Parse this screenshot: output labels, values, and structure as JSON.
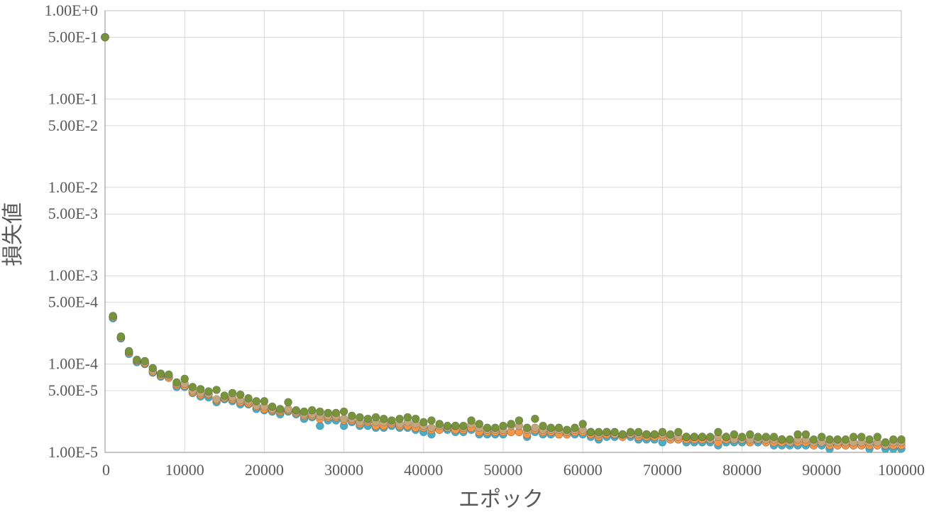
{
  "chart_data": {
    "type": "scatter",
    "xlabel": "エポック",
    "ylabel": "損失値",
    "xlim": [
      0,
      100000
    ],
    "ylim": [
      1e-05,
      1
    ],
    "y_scale": "log",
    "grid": true,
    "legend": "none",
    "x_ticks": [
      0,
      10000,
      20000,
      30000,
      40000,
      50000,
      60000,
      70000,
      80000,
      90000,
      100000
    ],
    "x_tick_labels": [
      "0",
      "10000",
      "20000",
      "30000",
      "40000",
      "50000",
      "60000",
      "70000",
      "80000",
      "90000",
      "100000"
    ],
    "y_ticks": [
      1,
      0.5,
      0.1,
      0.05,
      0.01,
      0.005,
      0.001,
      0.0005,
      0.0001,
      5e-05,
      1e-05
    ],
    "y_tick_labels": [
      "1.00E+0",
      "5.00E-1",
      "1.00E-1",
      "5.00E-2",
      "1.00E-2",
      "5.00E-3",
      "1.00E-3",
      "5.00E-4",
      "1.00E-4",
      "5.00E-5",
      "1.00E-5"
    ],
    "x": [
      0,
      1000,
      2000,
      3000,
      4000,
      5000,
      6000,
      7000,
      8000,
      9000,
      10000,
      11000,
      12000,
      13000,
      14000,
      15000,
      16000,
      17000,
      18000,
      19000,
      20000,
      21000,
      22000,
      23000,
      24000,
      25000,
      26000,
      27000,
      28000,
      29000,
      30000,
      31000,
      32000,
      33000,
      34000,
      35000,
      36000,
      37000,
      38000,
      39000,
      40000,
      41000,
      42000,
      43000,
      44000,
      45000,
      46000,
      47000,
      48000,
      49000,
      50000,
      51000,
      52000,
      53000,
      54000,
      55000,
      56000,
      57000,
      58000,
      59000,
      60000,
      61000,
      62000,
      63000,
      64000,
      65000,
      66000,
      67000,
      68000,
      69000,
      70000,
      71000,
      72000,
      73000,
      74000,
      75000,
      76000,
      77000,
      78000,
      79000,
      80000,
      81000,
      82000,
      83000,
      84000,
      85000,
      86000,
      87000,
      88000,
      89000,
      90000,
      91000,
      92000,
      93000,
      94000,
      95000,
      96000,
      97000,
      98000,
      99000,
      100000
    ],
    "series": [
      {
        "color": "#4bacc6",
        "values": [
          0.5,
          0.00033,
          0.000195,
          0.00013,
          0.000105,
          0.0001,
          8e-05,
          7.2e-05,
          7e-05,
          5.5e-05,
          5.5e-05,
          4.7e-05,
          4.3e-05,
          4.2e-05,
          3.7e-05,
          4e-05,
          3.8e-05,
          3.5e-05,
          3.5e-05,
          3.1e-05,
          3e-05,
          2.9e-05,
          2.7e-05,
          2.9e-05,
          2.7e-05,
          2.4e-05,
          2.5e-05,
          2e-05,
          2.3e-05,
          2.3e-05,
          2e-05,
          2.2e-05,
          2e-05,
          2e-05,
          1.9e-05,
          1.9e-05,
          2e-05,
          1.9e-05,
          1.9e-05,
          1.8e-05,
          1.7e-05,
          1.6e-05,
          1.8e-05,
          1.8e-05,
          1.7e-05,
          1.7e-05,
          1.8e-05,
          1.6e-05,
          1.6e-05,
          1.6e-05,
          1.6e-05,
          1.7e-05,
          1.7e-05,
          1.5e-05,
          1.7e-05,
          1.6e-05,
          1.6e-05,
          1.6e-05,
          1.6e-05,
          1.6e-05,
          1.6e-05,
          1.5e-05,
          1.4e-05,
          1.5e-05,
          1.5e-05,
          1.5e-05,
          1.5e-05,
          1.4e-05,
          1.4e-05,
          1.4e-05,
          1.3e-05,
          1.4e-05,
          1.4e-05,
          1.3e-05,
          1.3e-05,
          1.3e-05,
          1.3e-05,
          1.2e-05,
          1.3e-05,
          1.3e-05,
          1.3e-05,
          1.3e-05,
          1.3e-05,
          1.3e-05,
          1.2e-05,
          1.2e-05,
          1.2e-05,
          1.2e-05,
          1.2e-05,
          1.2e-05,
          1.2e-05,
          1.1e-05,
          1.2e-05,
          1.2e-05,
          1.2e-05,
          1.2e-05,
          1.1e-05,
          1.2e-05,
          1.1e-05,
          1.1e-05,
          1.1e-05
        ]
      },
      {
        "color": "#f79646",
        "values": [
          0.5,
          0.00034,
          0.0002,
          0.000135,
          0.000108,
          0.000102,
          8.2e-05,
          7.4e-05,
          7e-05,
          5.8e-05,
          5.7e-05,
          4.8e-05,
          4.5e-05,
          4.5e-05,
          3.9e-05,
          4.1e-05,
          4e-05,
          3.7e-05,
          3.6e-05,
          3.3e-05,
          3.1e-05,
          3e-05,
          2.9e-05,
          3e-05,
          2.8e-05,
          2.6e-05,
          2.6e-05,
          2.4e-05,
          2.5e-05,
          2.5e-05,
          2.3e-05,
          2.3e-05,
          2.1e-05,
          2.2e-05,
          2e-05,
          2e-05,
          2.1e-05,
          2e-05,
          2e-05,
          1.9e-05,
          1.9e-05,
          1.8e-05,
          1.8e-05,
          1.9e-05,
          1.8e-05,
          1.8e-05,
          1.9e-05,
          1.7e-05,
          1.7e-05,
          1.7e-05,
          1.7e-05,
          1.7e-05,
          1.7e-05,
          1.6e-05,
          1.8e-05,
          1.7e-05,
          1.7e-05,
          1.6e-05,
          1.6e-05,
          1.7e-05,
          1.7e-05,
          1.6e-05,
          1.5e-05,
          1.6e-05,
          1.6e-05,
          1.5e-05,
          1.6e-05,
          1.5e-05,
          1.5e-05,
          1.5e-05,
          1.5e-05,
          1.4e-05,
          1.4e-05,
          1.4e-05,
          1.4e-05,
          1.4e-05,
          1.4e-05,
          1.3e-05,
          1.4e-05,
          1.4e-05,
          1.4e-05,
          1.3e-05,
          1.4e-05,
          1.3e-05,
          1.3e-05,
          1.3e-05,
          1.3e-05,
          1.3e-05,
          1.3e-05,
          1.2e-05,
          1.3e-05,
          1.2e-05,
          1.2e-05,
          1.2e-05,
          1.2e-05,
          1.2e-05,
          1.2e-05,
          1.2e-05,
          1.2e-05,
          1.2e-05,
          1.2e-05
        ]
      },
      {
        "color": "#c4a67c",
        "values": [
          0.5,
          0.00034,
          0.0002,
          0.000138,
          0.00011,
          0.000104,
          8.5e-05,
          7.6e-05,
          7.3e-05,
          6e-05,
          6e-05,
          5e-05,
          4.7e-05,
          4.6e-05,
          4e-05,
          4.2e-05,
          4.2e-05,
          3.9e-05,
          3.8e-05,
          3.4e-05,
          3.3e-05,
          3.1e-05,
          3e-05,
          3.1e-05,
          2.9e-05,
          2.7e-05,
          2.7e-05,
          2.6e-05,
          2.6e-05,
          2.6e-05,
          2.4e-05,
          2.4e-05,
          2.2e-05,
          2.3e-05,
          2.2e-05,
          2.2e-05,
          2.2e-05,
          2.1e-05,
          2.2e-05,
          2.1e-05,
          2e-05,
          1.9e-05,
          2e-05,
          1.9e-05,
          2e-05,
          1.9e-05,
          2.1e-05,
          1.9e-05,
          1.8e-05,
          1.8e-05,
          1.8e-05,
          2e-05,
          2e-05,
          1.8e-05,
          1.9e-05,
          1.8e-05,
          1.8e-05,
          1.8e-05,
          1.7e-05,
          1.8e-05,
          1.8e-05,
          1.7e-05,
          1.6e-05,
          1.7e-05,
          1.6e-05,
          1.6e-05,
          1.6e-05,
          1.6e-05,
          1.6e-05,
          1.6e-05,
          1.6e-05,
          1.5e-05,
          1.5e-05,
          1.5e-05,
          1.5e-05,
          1.5e-05,
          1.4e-05,
          1.5e-05,
          1.5e-05,
          1.4e-05,
          1.4e-05,
          1.4e-05,
          1.4e-05,
          1.4e-05,
          1.4e-05,
          1.4e-05,
          1.3e-05,
          1.4e-05,
          1.4e-05,
          1.3e-05,
          1.3e-05,
          1.3e-05,
          1.3e-05,
          1.3e-05,
          1.3e-05,
          1.3e-05,
          1.3e-05,
          1.3e-05,
          1.2e-05,
          1.3e-05,
          1.3e-05
        ]
      },
      {
        "color": "#77933c",
        "values": [
          0.5,
          0.00035,
          0.000205,
          0.00014,
          0.000112,
          0.000108,
          9e-05,
          7.8e-05,
          7.6e-05,
          6.2e-05,
          6.8e-05,
          5.5e-05,
          5.2e-05,
          4.9e-05,
          5.1e-05,
          4.4e-05,
          4.7e-05,
          4.5e-05,
          4.1e-05,
          3.8e-05,
          3.8e-05,
          3.3e-05,
          3.1e-05,
          3.7e-05,
          3e-05,
          2.9e-05,
          3e-05,
          2.9e-05,
          2.8e-05,
          2.8e-05,
          2.9e-05,
          2.6e-05,
          2.5e-05,
          2.4e-05,
          2.5e-05,
          2.4e-05,
          2.3e-05,
          2.4e-05,
          2.5e-05,
          2.4e-05,
          2.2e-05,
          2.3e-05,
          2.1e-05,
          2e-05,
          2e-05,
          2e-05,
          2.3e-05,
          2.1e-05,
          1.9e-05,
          1.9e-05,
          2e-05,
          2.1e-05,
          2.3e-05,
          1.9e-05,
          2.4e-05,
          2e-05,
          1.9e-05,
          1.9e-05,
          1.8e-05,
          1.9e-05,
          2.1e-05,
          1.7e-05,
          1.7e-05,
          1.7e-05,
          1.7e-05,
          1.6e-05,
          1.7e-05,
          1.7e-05,
          1.6e-05,
          1.6e-05,
          1.7e-05,
          1.6e-05,
          1.7e-05,
          1.5e-05,
          1.5e-05,
          1.5e-05,
          1.5e-05,
          1.7e-05,
          1.5e-05,
          1.6e-05,
          1.5e-05,
          1.6e-05,
          1.5e-05,
          1.5e-05,
          1.5e-05,
          1.4e-05,
          1.4e-05,
          1.6e-05,
          1.6e-05,
          1.4e-05,
          1.5e-05,
          1.4e-05,
          1.4e-05,
          1.4e-05,
          1.5e-05,
          1.5e-05,
          1.4e-05,
          1.5e-05,
          1.3e-05,
          1.4e-05,
          1.4e-05
        ]
      }
    ]
  }
}
